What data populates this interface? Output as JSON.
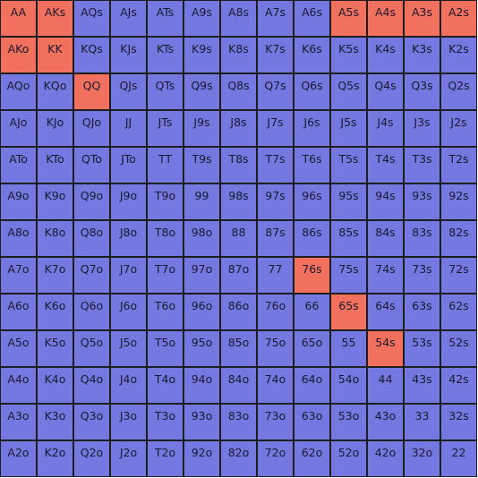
{
  "colors": {
    "default": "#7478e0",
    "highlight": "#f1705e",
    "border": "#1e1e1e"
  },
  "hands": [
    [
      "AA",
      "AKs",
      "AQs",
      "AJs",
      "ATs",
      "A9s",
      "A8s",
      "A7s",
      "A6s",
      "A5s",
      "A4s",
      "A3s",
      "A2s"
    ],
    [
      "AKo",
      "KK",
      "KQs",
      "KJs",
      "KTs",
      "K9s",
      "K8s",
      "K7s",
      "K6s",
      "K5s",
      "K4s",
      "K3s",
      "K2s"
    ],
    [
      "AQo",
      "KQo",
      "QQ",
      "QJs",
      "QTs",
      "Q9s",
      "Q8s",
      "Q7s",
      "Q6s",
      "Q5s",
      "Q4s",
      "Q3s",
      "Q2s"
    ],
    [
      "AJo",
      "KJo",
      "QJo",
      "JJ",
      "JTs",
      "J9s",
      "J8s",
      "J7s",
      "J6s",
      "J5s",
      "J4s",
      "J3s",
      "J2s"
    ],
    [
      "ATo",
      "KTo",
      "QTo",
      "JTo",
      "TT",
      "T9s",
      "T8s",
      "T7s",
      "T6s",
      "T5s",
      "T4s",
      "T3s",
      "T2s"
    ],
    [
      "A9o",
      "K9o",
      "Q9o",
      "J9o",
      "T9o",
      "99",
      "98s",
      "97s",
      "96s",
      "95s",
      "94s",
      "93s",
      "92s"
    ],
    [
      "A8o",
      "K8o",
      "Q8o",
      "J8o",
      "T8o",
      "98o",
      "88",
      "87s",
      "86s",
      "85s",
      "84s",
      "83s",
      "82s"
    ],
    [
      "A7o",
      "K7o",
      "Q7o",
      "J7o",
      "T7o",
      "97o",
      "87o",
      "77",
      "76s",
      "75s",
      "74s",
      "73s",
      "72s"
    ],
    [
      "A6o",
      "K6o",
      "Q6o",
      "J6o",
      "T6o",
      "96o",
      "86o",
      "76o",
      "66",
      "65s",
      "64s",
      "63s",
      "62s"
    ],
    [
      "A5o",
      "K5o",
      "Q5o",
      "J5o",
      "T5o",
      "95o",
      "85o",
      "75o",
      "65o",
      "55",
      "54s",
      "53s",
      "52s"
    ],
    [
      "A4o",
      "K4o",
      "Q4o",
      "J4o",
      "T4o",
      "94o",
      "84o",
      "74o",
      "64o",
      "54o",
      "44",
      "43s",
      "42s"
    ],
    [
      "A3o",
      "K3o",
      "Q3o",
      "J3o",
      "T3o",
      "93o",
      "83o",
      "73o",
      "63o",
      "53o",
      "43o",
      "33",
      "32s"
    ],
    [
      "A2o",
      "K2o",
      "Q2o",
      "J2o",
      "T2o",
      "92o",
      "82o",
      "72o",
      "62o",
      "52o",
      "42o",
      "32o",
      "22"
    ]
  ],
  "highlighted": [
    "AA",
    "AKs",
    "A5s",
    "A4s",
    "A3s",
    "A2s",
    "AKo",
    "KK",
    "QQ",
    "76s",
    "65s",
    "54s"
  ]
}
